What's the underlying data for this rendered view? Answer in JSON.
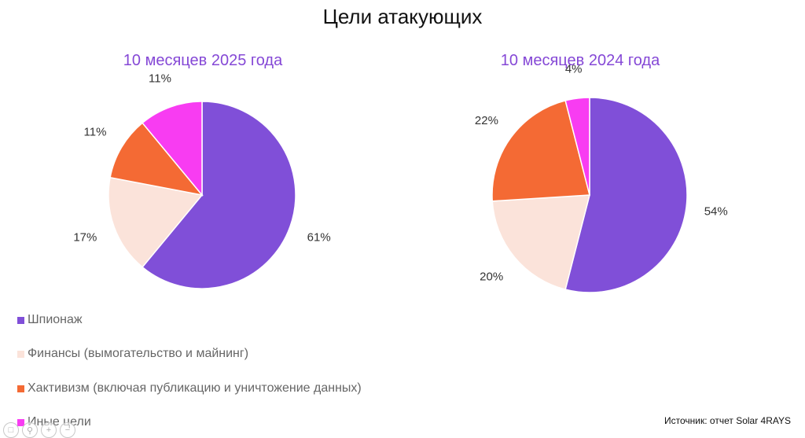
{
  "title": "Цели атакующих",
  "colors": {
    "espionage": "#804fd8",
    "finance": "#fbe3da",
    "hacktivism": "#f46a34",
    "other": "#f83cf2",
    "subtitle": "#8548d6"
  },
  "chart_data": [
    {
      "type": "pie",
      "title": "10 месяцев 2025 года",
      "categories": [
        "Шпионаж",
        "Финансы (вымогательство и майнинг)",
        "Хактивизм (включая публикацию и уничтожение данных)",
        "Иные цели"
      ],
      "values": [
        61,
        17,
        11,
        11
      ],
      "labels": [
        "61%",
        "17%",
        "11%",
        "11%"
      ]
    },
    {
      "type": "pie",
      "title": "10 месяцев 2024 года",
      "categories": [
        "Шпионаж",
        "Финансы (вымогательство и майнинг)",
        "Хактивизм (включая публикацию и уничтожение данных)",
        "Иные цели"
      ],
      "values": [
        54,
        20,
        22,
        4
      ],
      "labels": [
        "54%",
        "20%",
        "22%",
        "4%"
      ]
    }
  ],
  "legend": {
    "items": [
      "Шпионаж",
      "Финансы (вымогательство и майнинг)",
      "Хактивизм (включая публикацию и уничтожение данных)",
      "Иные цели"
    ]
  },
  "source": "Источник: отчет Solar 4RAYS",
  "viewer_icons": [
    "fit-page-icon",
    "search-icon",
    "zoom-in-icon",
    "zoom-out-icon"
  ]
}
